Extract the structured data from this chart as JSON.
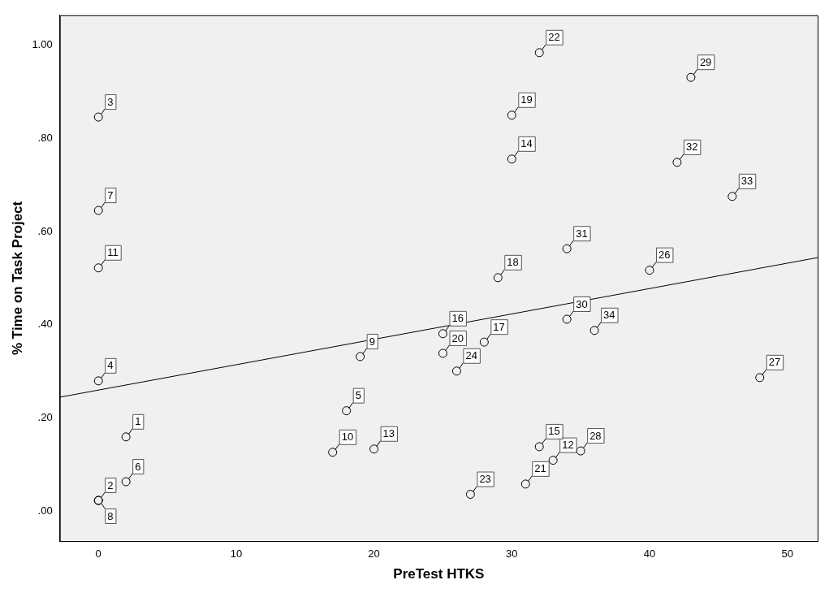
{
  "chart_data": {
    "type": "scatter",
    "xlabel": "PreTest HTKS",
    "ylabel": "% Time on Task Project",
    "xlim": [
      -2.8,
      52.2
    ],
    "ylim": [
      -0.063,
      1.063
    ],
    "xticks": [
      0,
      10,
      20,
      30,
      40,
      50
    ],
    "yticks": [
      {
        "value": 0,
        "label": ".00"
      },
      {
        "value": 0.2,
        "label": ".20"
      },
      {
        "value": 0.4,
        "label": ".40"
      },
      {
        "value": 0.6,
        "label": ".60"
      },
      {
        "value": 0.8,
        "label": ".80"
      },
      {
        "value": 1,
        "label": "1.00"
      }
    ],
    "grid": false,
    "legend": false,
    "series": [
      {
        "marker": "circle",
        "color": "#000000",
        "x": [
          2,
          0,
          0,
          0,
          18,
          2,
          0,
          0,
          19,
          17,
          0,
          33,
          20,
          30,
          32,
          25,
          28,
          29,
          30,
          25,
          31,
          32,
          27,
          26,
          40,
          48,
          35,
          43,
          34,
          34,
          42,
          46,
          36
        ],
        "values": [
          0.16,
          0.024,
          0.845,
          0.28,
          0.216,
          0.064,
          0.645,
          0.024,
          0.332,
          0.127,
          0.522,
          0.11,
          0.134,
          0.755,
          0.139,
          0.381,
          0.363,
          0.501,
          0.849,
          0.339,
          0.059,
          0.983,
          0.037,
          0.301,
          0.517,
          0.287,
          0.13,
          0.93,
          0.412,
          0.563,
          0.748,
          0.675,
          0.388
        ]
      },
      {
        "type": "line",
        "marker": "none",
        "color": "#000000",
        "x": [
          -2.8,
          52.2
        ],
        "values": [
          0.245,
          0.544
        ]
      }
    ],
    "annotations": [
      {
        "text": "1",
        "x": 2,
        "y": 0.16
      },
      {
        "text": "2",
        "x": 0,
        "y": 0.024
      },
      {
        "text": "3",
        "x": 0,
        "y": 0.845
      },
      {
        "text": "4",
        "x": 0,
        "y": 0.28
      },
      {
        "text": "5",
        "x": 18,
        "y": 0.216
      },
      {
        "text": "6",
        "x": 2,
        "y": 0.064
      },
      {
        "text": "7",
        "x": 0,
        "y": 0.645
      },
      {
        "text": "8",
        "x": 0,
        "y": 0.024
      },
      {
        "text": "9",
        "x": 19,
        "y": 0.332
      },
      {
        "text": "10",
        "x": 17,
        "y": 0.127
      },
      {
        "text": "11",
        "x": 0,
        "y": 0.522
      },
      {
        "text": "12",
        "x": 33,
        "y": 0.11
      },
      {
        "text": "13",
        "x": 20,
        "y": 0.134
      },
      {
        "text": "14",
        "x": 30,
        "y": 0.755
      },
      {
        "text": "15",
        "x": 32,
        "y": 0.139
      },
      {
        "text": "16",
        "x": 25,
        "y": 0.381
      },
      {
        "text": "17",
        "x": 28,
        "y": 0.363
      },
      {
        "text": "18",
        "x": 29,
        "y": 0.501
      },
      {
        "text": "19",
        "x": 30,
        "y": 0.849
      },
      {
        "text": "20",
        "x": 25,
        "y": 0.339
      },
      {
        "text": "21",
        "x": 31,
        "y": 0.059
      },
      {
        "text": "22",
        "x": 32,
        "y": 0.983
      },
      {
        "text": "23",
        "x": 27,
        "y": 0.037
      },
      {
        "text": "24",
        "x": 26,
        "y": 0.301
      },
      {
        "text": "26",
        "x": 40,
        "y": 0.517
      },
      {
        "text": "27",
        "x": 48,
        "y": 0.287
      },
      {
        "text": "28",
        "x": 35,
        "y": 0.13
      },
      {
        "text": "29",
        "x": 43,
        "y": 0.93
      },
      {
        "text": "30",
        "x": 34,
        "y": 0.412
      },
      {
        "text": "31",
        "x": 34,
        "y": 0.563
      },
      {
        "text": "32",
        "x": 42,
        "y": 0.748
      },
      {
        "text": "33",
        "x": 46,
        "y": 0.675
      },
      {
        "text": "34",
        "x": 36,
        "y": 0.388
      }
    ]
  }
}
